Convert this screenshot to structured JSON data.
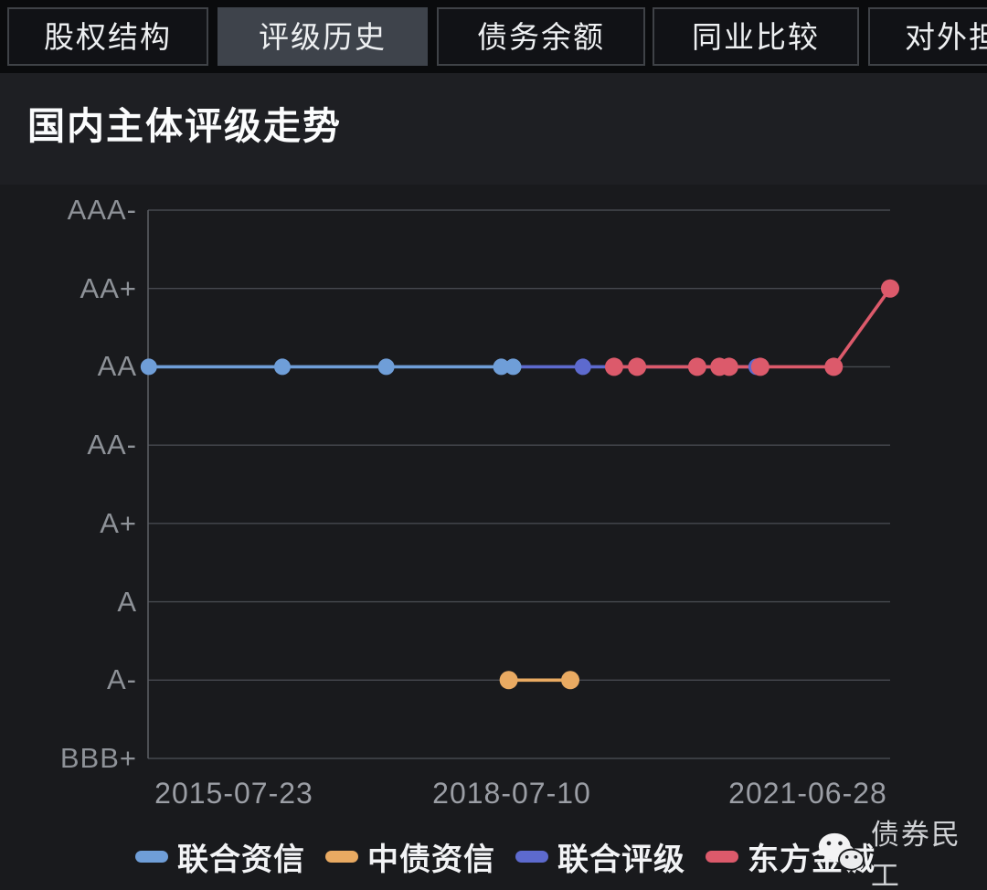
{
  "tabs": {
    "items": [
      {
        "label": "股权结构",
        "active": false
      },
      {
        "label": "评级历史",
        "active": true
      },
      {
        "label": "债务余额",
        "active": false
      },
      {
        "label": "同业比较",
        "active": false
      },
      {
        "label": "对外担保",
        "active": false
      }
    ]
  },
  "header": {
    "title": "国内主体评级走势"
  },
  "watermark": {
    "icon": "wechat-icon",
    "label": "债券民工"
  },
  "legend": {
    "items": [
      {
        "label": "联合资信",
        "color": "#6f9ed8"
      },
      {
        "label": "中债资信",
        "color": "#e9aa62"
      },
      {
        "label": "联合评级",
        "color": "#5d6ace"
      },
      {
        "label": "东方金诚",
        "color": "#dc5a6b"
      }
    ]
  },
  "chart_data": {
    "type": "line",
    "title": "国内主体评级走势",
    "y_levels_top_down": [
      "AAA-",
      "AA+",
      "AA",
      "AA-",
      "A+",
      "A",
      "A-",
      "BBB+"
    ],
    "x_ticks": [
      "2015-07-23",
      "2018-07-10",
      "2021-06-28"
    ],
    "grid": true,
    "legend_position": "bottom",
    "axis_colors": {
      "gridline": "#46494f",
      "axis_line": "#5a5d63"
    },
    "series": [
      {
        "name": "联合资信",
        "color": "#6f9ed8",
        "dot_r": 9,
        "points": [
          {
            "x_frac": 0.001,
            "rating": "AA"
          },
          {
            "x_frac": 0.181,
            "rating": "AA"
          },
          {
            "x_frac": 0.321,
            "rating": "AA"
          },
          {
            "x_frac": 0.476,
            "rating": "AA"
          },
          {
            "x_frac": 0.492,
            "rating": "AA"
          }
        ]
      },
      {
        "name": "中债资信",
        "color": "#e9aa62",
        "dot_r": 10,
        "points": [
          {
            "x_frac": 0.486,
            "rating": "A-"
          },
          {
            "x_frac": 0.569,
            "rating": "A-"
          }
        ]
      },
      {
        "name": "联合评级",
        "color": "#5d6ace",
        "dot_r": 9,
        "points": [
          {
            "x_frac": 0.492,
            "rating": "AA",
            "dot": false
          },
          {
            "x_frac": 0.586,
            "rating": "AA"
          },
          {
            "x_frac": 0.82,
            "rating": "AA"
          }
        ]
      },
      {
        "name": "东方金诚",
        "color": "#dc5a6b",
        "dot_r": 10,
        "points": [
          {
            "x_frac": 0.628,
            "rating": "AA"
          },
          {
            "x_frac": 0.659,
            "rating": "AA"
          },
          {
            "x_frac": 0.74,
            "rating": "AA"
          },
          {
            "x_frac": 0.77,
            "rating": "AA"
          },
          {
            "x_frac": 0.783,
            "rating": "AA"
          },
          {
            "x_frac": 0.825,
            "rating": "AA"
          },
          {
            "x_frac": 0.924,
            "rating": "AA"
          },
          {
            "x_frac": 1.0,
            "rating": "AA+"
          }
        ]
      }
    ]
  }
}
